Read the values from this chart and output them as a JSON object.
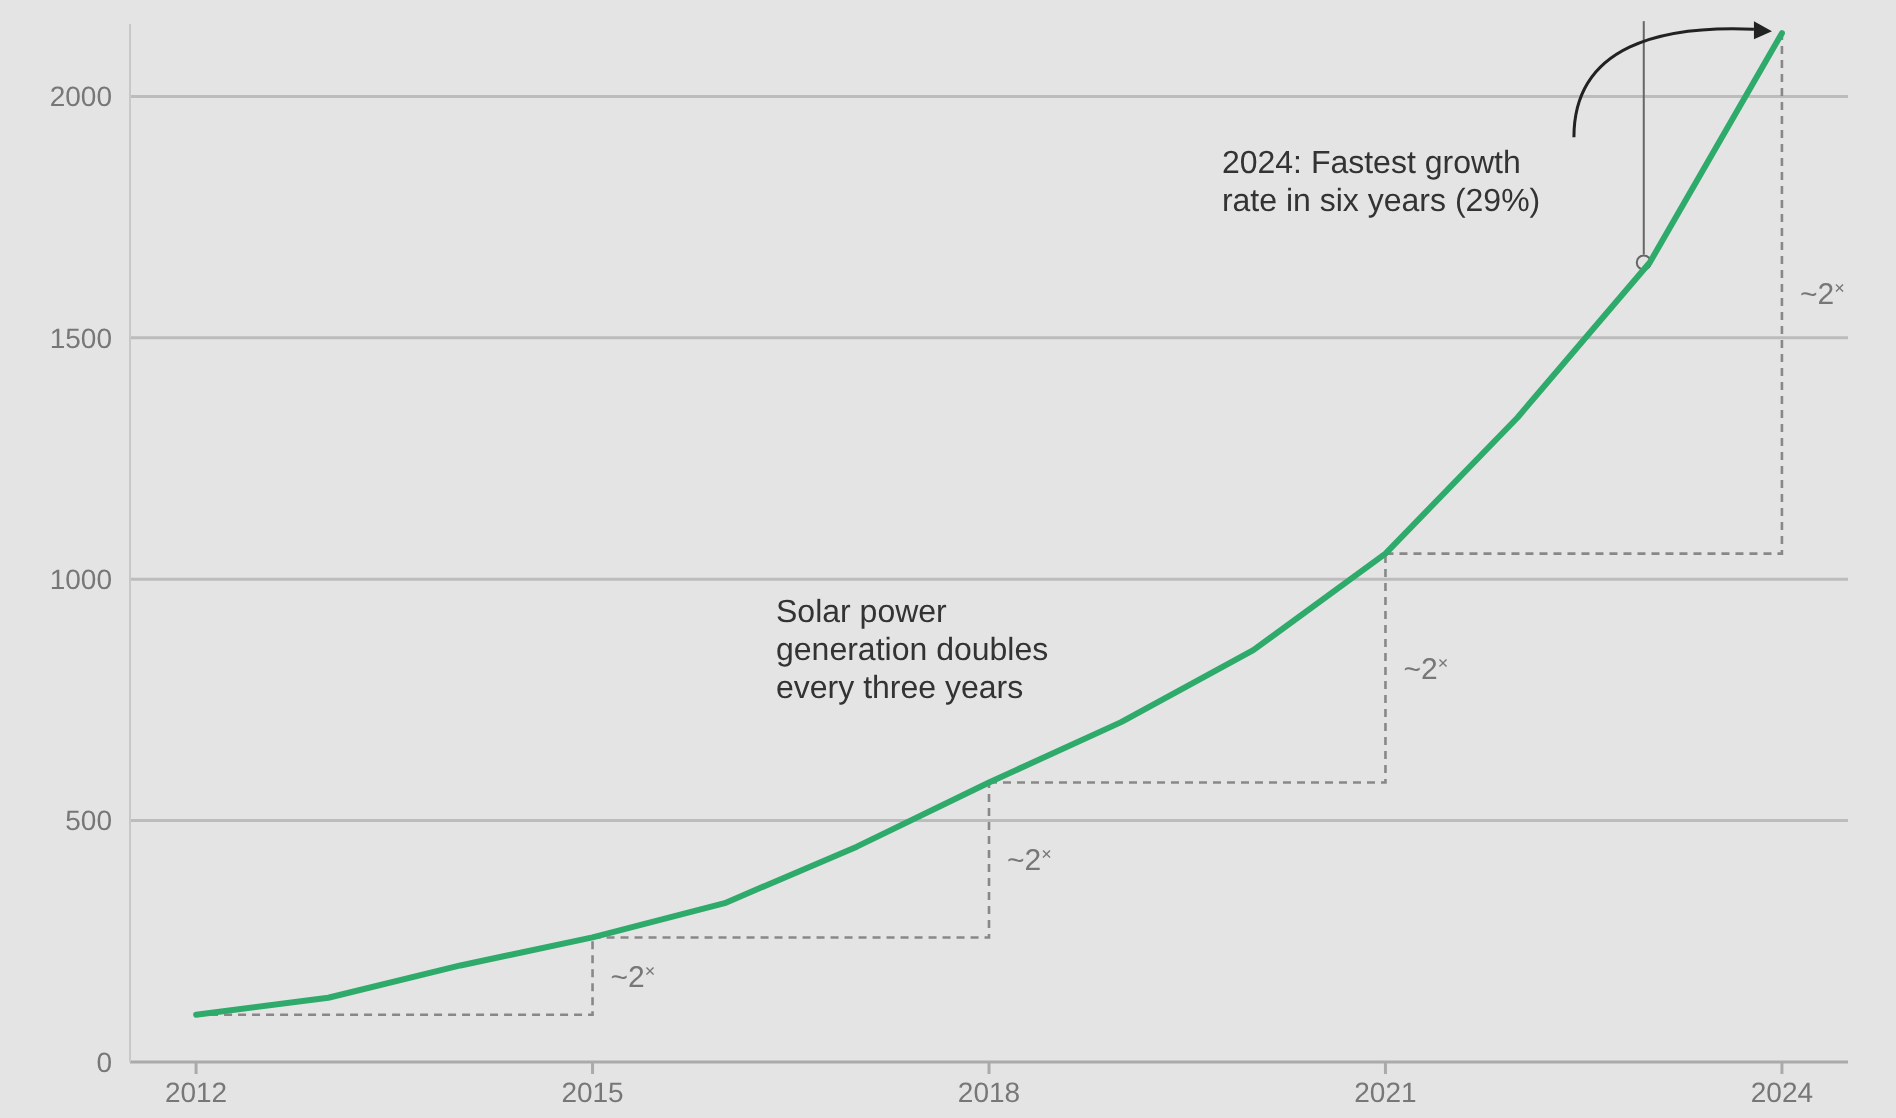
{
  "chart_data": {
    "type": "line",
    "x": [
      2012,
      2013,
      2014,
      2015,
      2016,
      2017,
      2018,
      2019,
      2020,
      2021,
      2022,
      2023,
      2024
    ],
    "series": [
      {
        "color": "#2eaa6b",
        "values": [
          98,
          133,
          200,
          258,
          329,
          446,
          579,
          704,
          853,
          1053,
          1335,
          1656,
          2131
        ]
      }
    ],
    "xlim": [
      2011.5,
      2024.5
    ],
    "xticks": [
      2012,
      2015,
      2018,
      2021,
      2024
    ],
    "ylim": [
      0,
      2150
    ],
    "yticks": [
      0,
      500,
      1000,
      1500,
      2000
    ],
    "grid": "y",
    "marker": "none",
    "line_style": "solid",
    "annotations": [
      "2024: Fastest growth rate in six years (29%)",
      "Solar power generation doubles every three years",
      {
        "text": "~2$^{×}$",
        "x": 2015,
        "y": 258
      },
      {
        "text": "~2$^{×}$",
        "x": 2018,
        "y": 579
      },
      "~2$^{×}$",
      "~2$^{×}$"
    ]
  }
}
